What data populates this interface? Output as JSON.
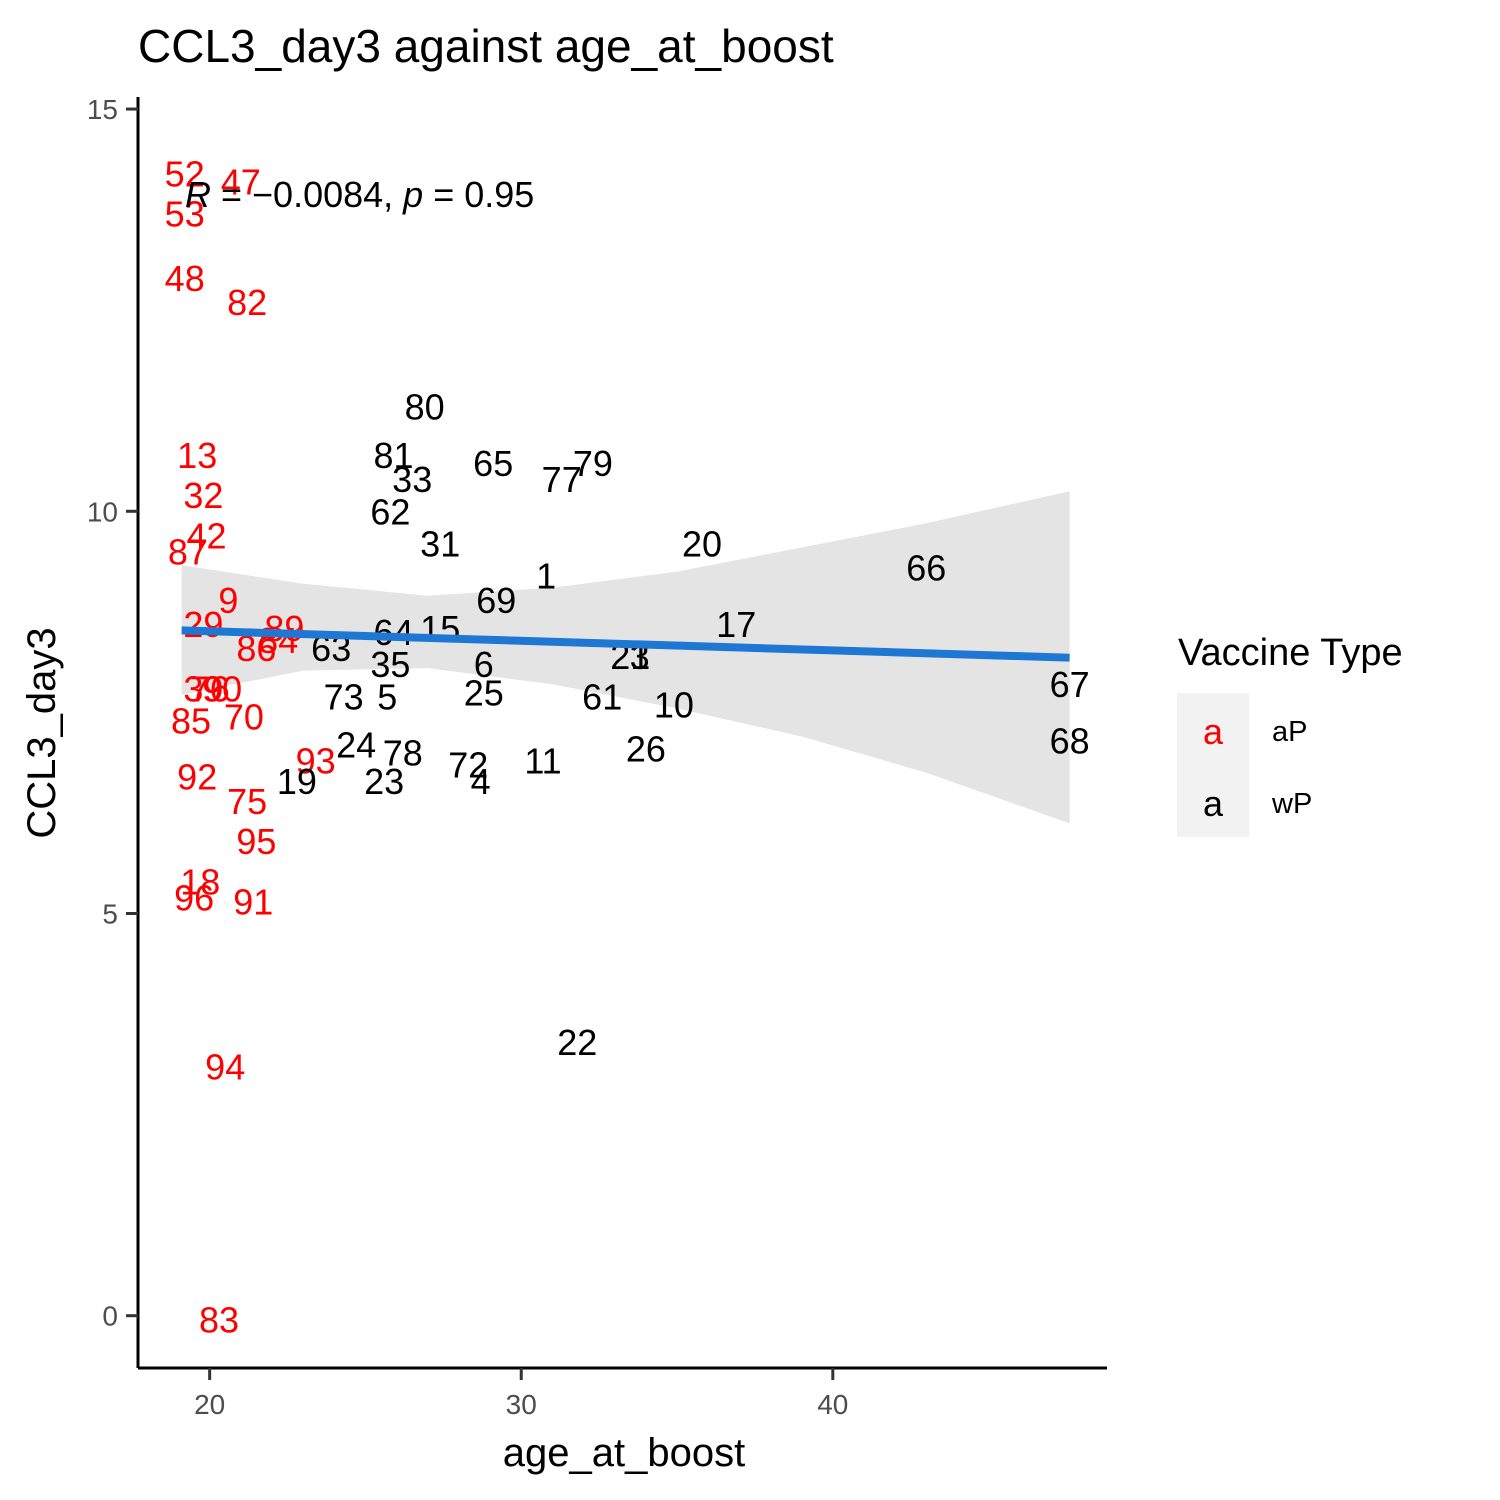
{
  "chart_data": {
    "type": "scatter",
    "title": "CCL3_day3 against age_at_boost",
    "xlabel": "age_at_boost",
    "ylabel": "CCL3_day3",
    "xlim": [
      17.7,
      48.8
    ],
    "ylim": [
      -0.65,
      15.15
    ],
    "xticks": [
      20,
      30,
      40
    ],
    "yticks": [
      0,
      5,
      10,
      15
    ],
    "grid": false,
    "marker": "text",
    "annotation": {
      "R_symbol": "R",
      "R_value": " = −0.0084, ",
      "p_symbol": "p",
      "p_value": " = 0.95"
    },
    "legend": {
      "title": "Vaccine Type",
      "placement": "right",
      "key_glyph": "a",
      "entries": [
        {
          "name": "aP",
          "color": "#ff0000"
        },
        {
          "name": "wP",
          "color": "#000000"
        }
      ]
    },
    "fit": {
      "method": "lm",
      "color": "#1f77d4",
      "band_color": "#d9d9d9",
      "x": [
        19.1,
        47.6
      ],
      "y": [
        8.52,
        8.18
      ],
      "band": [
        {
          "x": 19.1,
          "lo": 7.72,
          "hi": 9.33
        },
        {
          "x": 23.0,
          "lo": 8.02,
          "hi": 9.1
        },
        {
          "x": 27.0,
          "lo": 8.05,
          "hi": 8.95
        },
        {
          "x": 31.0,
          "lo": 7.85,
          "hi": 9.05
        },
        {
          "x": 35.0,
          "lo": 7.55,
          "hi": 9.25
        },
        {
          "x": 39.0,
          "lo": 7.2,
          "hi": 9.55
        },
        {
          "x": 43.0,
          "lo": 6.75,
          "hi": 9.85
        },
        {
          "x": 47.6,
          "lo": 6.12,
          "hi": 10.25
        }
      ]
    },
    "series": [
      {
        "name": "aP",
        "color": "#ff0000",
        "points": [
          {
            "label": "52",
            "x": 19.2,
            "y": 14.2
          },
          {
            "label": "47",
            "x": 21.0,
            "y": 14.1
          },
          {
            "label": "53",
            "x": 19.2,
            "y": 13.7
          },
          {
            "label": "48",
            "x": 19.2,
            "y": 12.9
          },
          {
            "label": "82",
            "x": 21.2,
            "y": 12.6
          },
          {
            "label": "13",
            "x": 19.6,
            "y": 10.7
          },
          {
            "label": "32",
            "x": 19.8,
            "y": 10.2
          },
          {
            "label": "42",
            "x": 19.9,
            "y": 9.7
          },
          {
            "label": "87",
            "x": 19.3,
            "y": 9.5
          },
          {
            "label": "9",
            "x": 20.6,
            "y": 8.9
          },
          {
            "label": "29",
            "x": 19.8,
            "y": 8.6
          },
          {
            "label": "89",
            "x": 22.4,
            "y": 8.55
          },
          {
            "label": "86",
            "x": 21.5,
            "y": 8.3
          },
          {
            "label": "84",
            "x": 22.2,
            "y": 8.4
          },
          {
            "label": "39",
            "x": 19.8,
            "y": 7.8
          },
          {
            "label": "76",
            "x": 20.0,
            "y": 7.8
          },
          {
            "label": "90",
            "x": 20.4,
            "y": 7.8
          },
          {
            "label": "85",
            "x": 19.4,
            "y": 7.4
          },
          {
            "label": "70",
            "x": 21.1,
            "y": 7.45
          },
          {
            "label": "92",
            "x": 19.6,
            "y": 6.7
          },
          {
            "label": "93",
            "x": 23.4,
            "y": 6.9
          },
          {
            "label": "75",
            "x": 21.2,
            "y": 6.4
          },
          {
            "label": "95",
            "x": 21.5,
            "y": 5.9
          },
          {
            "label": "18",
            "x": 19.7,
            "y": 5.4
          },
          {
            "label": "96",
            "x": 19.5,
            "y": 5.2
          },
          {
            "label": "91",
            "x": 21.4,
            "y": 5.15
          },
          {
            "label": "94",
            "x": 20.5,
            "y": 3.1
          },
          {
            "label": "83",
            "x": 20.3,
            "y": -0.05
          }
        ]
      },
      {
        "name": "wP",
        "color": "#000000",
        "points": [
          {
            "label": "80",
            "x": 26.9,
            "y": 11.3
          },
          {
            "label": "81",
            "x": 25.9,
            "y": 10.7
          },
          {
            "label": "65",
            "x": 29.1,
            "y": 10.6
          },
          {
            "label": "79",
            "x": 32.3,
            "y": 10.6
          },
          {
            "label": "33",
            "x": 26.5,
            "y": 10.4
          },
          {
            "label": "77",
            "x": 31.3,
            "y": 10.4
          },
          {
            "label": "62",
            "x": 25.8,
            "y": 10.0
          },
          {
            "label": "31",
            "x": 27.4,
            "y": 9.6
          },
          {
            "label": "20",
            "x": 35.8,
            "y": 9.6
          },
          {
            "label": "66",
            "x": 43.0,
            "y": 9.3
          },
          {
            "label": "1",
            "x": 30.8,
            "y": 9.2
          },
          {
            "label": "69",
            "x": 29.2,
            "y": 8.9
          },
          {
            "label": "17",
            "x": 36.9,
            "y": 8.6
          },
          {
            "label": "64",
            "x": 25.9,
            "y": 8.5
          },
          {
            "label": "15",
            "x": 27.4,
            "y": 8.55
          },
          {
            "label": "63",
            "x": 23.9,
            "y": 8.3
          },
          {
            "label": "21",
            "x": 33.5,
            "y": 8.2
          },
          {
            "label": "3",
            "x": 33.8,
            "y": 8.2
          },
          {
            "label": "35",
            "x": 25.8,
            "y": 8.1
          },
          {
            "label": "6",
            "x": 28.8,
            "y": 8.1
          },
          {
            "label": "67",
            "x": 47.6,
            "y": 7.85
          },
          {
            "label": "73",
            "x": 24.3,
            "y": 7.7
          },
          {
            "label": "5",
            "x": 25.7,
            "y": 7.7
          },
          {
            "label": "25",
            "x": 28.8,
            "y": 7.75
          },
          {
            "label": "61",
            "x": 32.6,
            "y": 7.7
          },
          {
            "label": "10",
            "x": 34.9,
            "y": 7.6
          },
          {
            "label": "24",
            "x": 24.7,
            "y": 7.1
          },
          {
            "label": "78",
            "x": 26.2,
            "y": 7.0
          },
          {
            "label": "72",
            "x": 28.3,
            "y": 6.85
          },
          {
            "label": "11",
            "x": 30.7,
            "y": 6.9
          },
          {
            "label": "26",
            "x": 34.0,
            "y": 7.05
          },
          {
            "label": "68",
            "x": 47.6,
            "y": 7.15
          },
          {
            "label": "19",
            "x": 22.8,
            "y": 6.65
          },
          {
            "label": "23",
            "x": 25.6,
            "y": 6.65
          },
          {
            "label": "4",
            "x": 28.7,
            "y": 6.65
          },
          {
            "label": "22",
            "x": 31.8,
            "y": 3.4
          }
        ]
      }
    ]
  }
}
